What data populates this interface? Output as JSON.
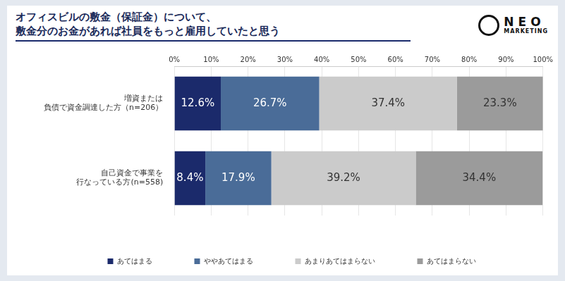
{
  "chart_data": {
    "type": "bar",
    "title": [
      "オフィスビルの敷金（保証金）について、",
      "敷金分のお金があれば社員をもっと雇用していたと思う"
    ],
    "categories": [
      "増資または\n負債で資金調達した方（n=206）",
      "自己資金で事業を\n行なっている方(n=558)"
    ],
    "series": [
      {
        "name": "あてはまる",
        "color": "#1b2a6b",
        "values": [
          12.6,
          8.4
        ],
        "value_labels": [
          "12.6%",
          "8.4%"
        ]
      },
      {
        "name": "ややあてはまる",
        "color": "#4a6c98",
        "values": [
          26.7,
          17.9
        ],
        "value_labels": [
          "26.7%",
          "17.9%"
        ]
      },
      {
        "name": "あまりあてはまらない",
        "color": "#cbcbcb",
        "values": [
          37.4,
          39.2
        ],
        "value_labels": [
          "37.4%",
          "39.2%"
        ]
      },
      {
        "name": "あてはまらない",
        "color": "#9b9b9b",
        "values": [
          23.3,
          34.4
        ],
        "value_labels": [
          "23.3%",
          "34.4%"
        ]
      }
    ],
    "orientation": "horizontal",
    "stacked": true,
    "data_labels": true,
    "grid": true,
    "legend": "bottom",
    "xlim": [
      0,
      100
    ],
    "xticks": [
      {
        "value": 0,
        "label": "0%"
      },
      {
        "value": 10,
        "label": "10%"
      },
      {
        "value": 20,
        "label": "20%"
      },
      {
        "value": 30,
        "label": "30%"
      },
      {
        "value": 40,
        "label": "40%"
      },
      {
        "value": 50,
        "label": "50%"
      },
      {
        "value": 60,
        "label": "60%"
      },
      {
        "value": 70,
        "label": "70%"
      },
      {
        "value": 80,
        "label": "80%"
      },
      {
        "value": 90,
        "label": "90%"
      },
      {
        "value": 100,
        "label": "100%"
      }
    ]
  },
  "logo": [
    "NEO",
    "MARKETING"
  ]
}
